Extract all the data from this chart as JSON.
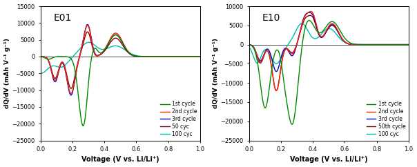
{
  "panels": [
    {
      "title": "E01",
      "ylim": [
        -25000,
        15000
      ],
      "yticks": [
        -25000,
        -20000,
        -15000,
        -10000,
        -5000,
        0,
        5000,
        10000,
        15000
      ],
      "ylabel": "dQ/dV (mAh V⁻¹ g⁻¹)",
      "xlabel": "Voltage (V vs. Li/Li⁺)",
      "legend_labels": [
        "1st cycle",
        "2nd cycle",
        "3rd cycle",
        "50 cyc",
        "100 cyc"
      ],
      "legend_colors": [
        "#008800",
        "#ff2200",
        "#0000cc",
        "#880000",
        "#00bbaa"
      ]
    },
    {
      "title": "E10",
      "ylim": [
        -25000,
        10000
      ],
      "yticks": [
        -25000,
        -20000,
        -15000,
        -10000,
        -5000,
        0,
        5000,
        10000
      ],
      "ylabel": "dQ/dV (mAh V⁻¹ g⁻¹)",
      "xlabel": "Voltage (V vs. Li/Li⁺)",
      "legend_labels": [
        "1st cycle",
        "2nd cycle",
        "3rd cycle",
        "50th cycle",
        "100 cyc"
      ],
      "legend_colors": [
        "#008800",
        "#ff2200",
        "#0000cc",
        "#880000",
        "#00bbaa"
      ]
    }
  ],
  "xlim": [
    0.0,
    1.0
  ],
  "xticks": [
    0.0,
    0.2,
    0.4,
    0.6,
    0.8,
    1.0
  ],
  "background_color": "#ffffff",
  "line_width": 1.0
}
